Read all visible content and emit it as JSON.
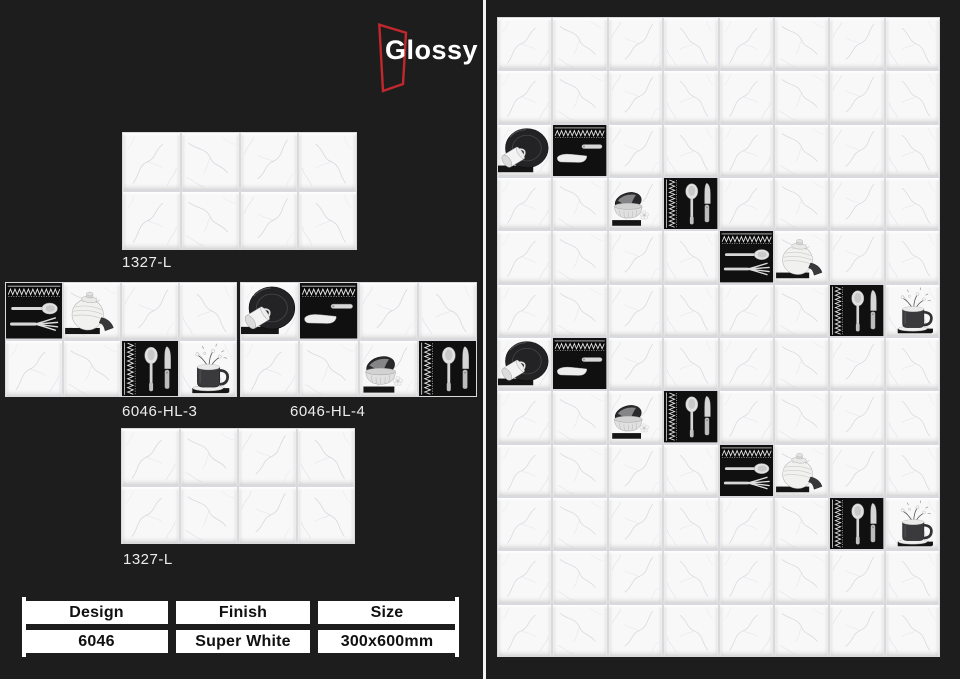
{
  "branding": {
    "name": "Glossy",
    "accent_color": "#c1272d"
  },
  "samples": [
    {
      "label": "1327-L",
      "cols": 4,
      "rows": 2,
      "decor": []
    },
    {
      "label": "6046-HL-3",
      "cols": 4,
      "rows": 2,
      "decor": [
        {
          "row": 0,
          "col": 0,
          "type": "fork"
        },
        {
          "row": 0,
          "col": 1,
          "type": "teapot"
        },
        {
          "row": 1,
          "col": 2,
          "type": "spoon"
        },
        {
          "row": 1,
          "col": 3,
          "type": "mug"
        }
      ]
    },
    {
      "label": "6046-HL-4",
      "cols": 4,
      "rows": 2,
      "decor": [
        {
          "row": 0,
          "col": 0,
          "type": "plate"
        },
        {
          "row": 0,
          "col": 1,
          "type": "knife"
        },
        {
          "row": 1,
          "col": 2,
          "type": "bowl"
        },
        {
          "row": 1,
          "col": 3,
          "type": "spoon"
        }
      ]
    },
    {
      "label": "1327-L",
      "cols": 4,
      "rows": 2,
      "decor": []
    }
  ],
  "wall_panel": {
    "cols": 8,
    "rows": 12,
    "decor": [
      {
        "row": 2,
        "col": 0,
        "type": "plate"
      },
      {
        "row": 2,
        "col": 1,
        "type": "knife"
      },
      {
        "row": 3,
        "col": 2,
        "type": "bowl"
      },
      {
        "row": 3,
        "col": 3,
        "type": "spoon"
      },
      {
        "row": 4,
        "col": 4,
        "type": "fork"
      },
      {
        "row": 4,
        "col": 5,
        "type": "teapot"
      },
      {
        "row": 5,
        "col": 6,
        "type": "spoon"
      },
      {
        "row": 5,
        "col": 7,
        "type": "mug"
      },
      {
        "row": 6,
        "col": 0,
        "type": "plate"
      },
      {
        "row": 6,
        "col": 1,
        "type": "knife"
      },
      {
        "row": 7,
        "col": 2,
        "type": "bowl"
      },
      {
        "row": 7,
        "col": 3,
        "type": "spoon"
      },
      {
        "row": 8,
        "col": 4,
        "type": "fork"
      },
      {
        "row": 8,
        "col": 5,
        "type": "teapot"
      },
      {
        "row": 9,
        "col": 6,
        "type": "spoon"
      },
      {
        "row": 9,
        "col": 7,
        "type": "mug"
      }
    ]
  },
  "spec_table": {
    "headers": [
      "Design",
      "Finish",
      "Size"
    ],
    "values": [
      "6046",
      "Super White",
      "300x600mm"
    ]
  },
  "colors": {
    "background": "#1d1d1d",
    "tile_white": "#f8f8f9",
    "accent_red": "#c1272d",
    "divider": "#f2f2f2",
    "decor_black": "#111111"
  }
}
